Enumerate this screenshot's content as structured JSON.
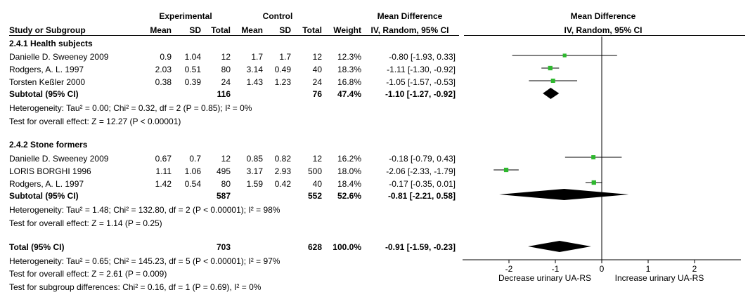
{
  "headers": {
    "experimental": "Experimental",
    "control": "Control",
    "md_group": "Mean Difference",
    "md_sub": "IV, Random, 95% CI",
    "plot_group": "Mean Difference",
    "plot_sub": "IV, Random, 95% CI",
    "study": "Study or Subgroup",
    "mean": "Mean",
    "sd": "SD",
    "total": "Total",
    "weight": "Weight"
  },
  "subgroups": [
    {
      "title": "2.4.1 Health subjects",
      "studies": [
        {
          "name": "Danielle D. Sweeney 2009",
          "e_mean": "0.9",
          "e_sd": "1.04",
          "e_total": "12",
          "c_mean": "1.7",
          "c_sd": "1.7",
          "c_total": "12",
          "weight": "12.3%",
          "ci": "-0.80 [-1.93, 0.33]",
          "md": -0.8,
          "lo": -1.93,
          "hi": 0.33
        },
        {
          "name": "Rodgers, A. L. 1997",
          "e_mean": "2.03",
          "e_sd": "0.51",
          "e_total": "80",
          "c_mean": "3.14",
          "c_sd": "0.49",
          "c_total": "40",
          "weight": "18.3%",
          "ci": "-1.11 [-1.30, -0.92]",
          "md": -1.11,
          "lo": -1.3,
          "hi": -0.92
        },
        {
          "name": "Torsten Keßler 2000",
          "e_mean": "0.38",
          "e_sd": "0.39",
          "e_total": "24",
          "c_mean": "1.43",
          "c_sd": "1.23",
          "c_total": "24",
          "weight": "16.8%",
          "ci": "-1.05 [-1.57, -0.53]",
          "md": -1.05,
          "lo": -1.57,
          "hi": -0.53
        }
      ],
      "subtotal": {
        "label": "Subtotal (95% CI)",
        "e_total": "116",
        "c_total": "76",
        "weight": "47.4%",
        "ci": "-1.10 [-1.27, -0.92]",
        "md": -1.1,
        "lo": -1.27,
        "hi": -0.92
      },
      "heterogeneity": "Heterogeneity: Tau² = 0.00; Chi² = 0.32, df = 2 (P = 0.85); I² = 0%",
      "overall": "Test for overall effect: Z = 12.27 (P < 0.00001)"
    },
    {
      "title": "2.4.2 Stone formers",
      "studies": [
        {
          "name": "Danielle D. Sweeney 2009",
          "e_mean": "0.67",
          "e_sd": "0.7",
          "e_total": "12",
          "c_mean": "0.85",
          "c_sd": "0.82",
          "c_total": "12",
          "weight": "16.2%",
          "ci": "-0.18 [-0.79, 0.43]",
          "md": -0.18,
          "lo": -0.79,
          "hi": 0.43
        },
        {
          "name": "LORIS BORGHI 1996",
          "e_mean": "1.11",
          "e_sd": "1.06",
          "e_total": "495",
          "c_mean": "3.17",
          "c_sd": "2.93",
          "c_total": "500",
          "weight": "18.0%",
          "ci": "-2.06 [-2.33, -1.79]",
          "md": -2.06,
          "lo": -2.33,
          "hi": -1.79
        },
        {
          "name": "Rodgers, A. L. 1997",
          "e_mean": "1.42",
          "e_sd": "0.54",
          "e_total": "80",
          "c_mean": "1.59",
          "c_sd": "0.42",
          "c_total": "40",
          "weight": "18.4%",
          "ci": "-0.17 [-0.35, 0.01]",
          "md": -0.17,
          "lo": -0.35,
          "hi": 0.01
        }
      ],
      "subtotal": {
        "label": "Subtotal (95% CI)",
        "e_total": "587",
        "c_total": "552",
        "weight": "52.6%",
        "ci": "-0.81 [-2.21, 0.58]",
        "md": -0.81,
        "lo": -2.21,
        "hi": 0.58
      },
      "heterogeneity": "Heterogeneity: Tau² = 1.48; Chi² = 132.80, df = 2 (P < 0.00001); I² = 98%",
      "overall": "Test for overall effect: Z = 1.14 (P = 0.25)"
    }
  ],
  "total": {
    "label": "Total (95% CI)",
    "e_total": "703",
    "c_total": "628",
    "weight": "100.0%",
    "ci": "-0.91 [-1.59, -0.23]",
    "md": -0.91,
    "lo": -1.59,
    "hi": -0.23
  },
  "footer": {
    "heterogeneity": "Heterogeneity: Tau² = 0.65; Chi² = 145.23, df = 5 (P < 0.00001); I² = 97%",
    "overall": "Test for overall effect: Z = 2.61 (P = 0.009)",
    "subgroup": "Test for subgroup differences: Chi² = 0.16, df = 1 (P = 0.69), I² = 0%"
  },
  "chart_data": {
    "type": "scatter",
    "xlim": [
      -3,
      3
    ],
    "ticks": [
      -2,
      -1,
      0,
      1,
      2
    ],
    "tick_labels": [
      "-2",
      "-1",
      "0",
      "1",
      "2"
    ],
    "xlabel_left": "Decrease urinary UA-RS",
    "xlabel_right": "Increase urinary UA-RS",
    "colors": {
      "study_marker": "#2eb82e",
      "diamond": "#000000"
    }
  }
}
